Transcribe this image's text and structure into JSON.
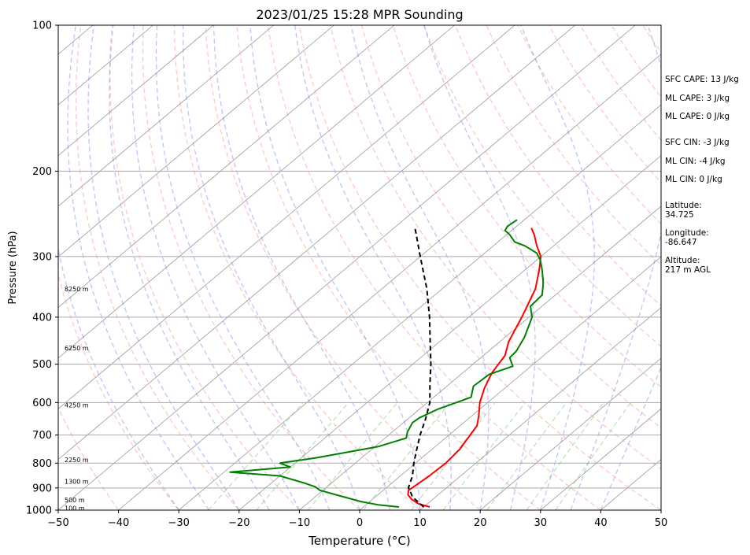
{
  "chart_data": {
    "type": "line",
    "title": "2023/01/25 15:28 MPR Sounding",
    "xlabel": "Temperature (°C)",
    "ylabel": "Pressure (hPa)",
    "xlim": [
      -50,
      50
    ],
    "ylim": [
      1000,
      100
    ],
    "yscale": "log",
    "skew": "skew-T",
    "grid": true,
    "x_ticks": [
      "−50",
      "−40",
      "−30",
      "−20",
      "−10",
      "0",
      "10",
      "20",
      "30",
      "40",
      "50"
    ],
    "y_ticks": [
      {
        "p": 100,
        "label": "100"
      },
      {
        "p": 200,
        "label": "200"
      },
      {
        "p": 300,
        "label": "300"
      },
      {
        "p": 400,
        "label": "400"
      },
      {
        "p": 500,
        "label": "500"
      },
      {
        "p": 600,
        "label": "600"
      },
      {
        "p": 700,
        "label": "700"
      },
      {
        "p": 800,
        "label": "800"
      },
      {
        "p": 900,
        "label": "900"
      },
      {
        "p": 1000,
        "label": "1000"
      }
    ],
    "height_labels": [
      {
        "p": 350,
        "label": "8250 m"
      },
      {
        "p": 463,
        "label": "6250 m"
      },
      {
        "p": 607,
        "label": "4250 m"
      },
      {
        "p": 787,
        "label": "2250 m"
      },
      {
        "p": 872,
        "label": "1300 m"
      },
      {
        "p": 953,
        "label": "500 m"
      },
      {
        "p": 990,
        "label": "100 m"
      }
    ],
    "series": [
      {
        "color": "#ff0000",
        "points": [
          [
            985,
            11.0
          ],
          [
            970,
            8.5
          ],
          [
            950,
            6.5
          ],
          [
            930,
            5.0
          ],
          [
            910,
            4.2
          ],
          [
            880,
            4.5
          ],
          [
            850,
            4.8
          ],
          [
            800,
            5.0
          ],
          [
            750,
            4.6
          ],
          [
            700,
            3.5
          ],
          [
            670,
            2.8
          ],
          [
            640,
            1.2
          ],
          [
            600,
            -1.3
          ],
          [
            560,
            -3.4
          ],
          [
            520,
            -5.2
          ],
          [
            480,
            -6.4
          ],
          [
            450,
            -8.5
          ],
          [
            400,
            -11.2
          ],
          [
            350,
            -14.5
          ],
          [
            320,
            -17.6
          ],
          [
            300,
            -20.0
          ],
          [
            285,
            -22.8
          ],
          [
            270,
            -25.5
          ],
          [
            262,
            -27.2
          ]
        ]
      },
      {
        "color": "#008000",
        "points": [
          [
            985,
            5.9
          ],
          [
            975,
            2.0
          ],
          [
            960,
            -1.5
          ],
          [
            935,
            -6.0
          ],
          [
            910,
            -10.5
          ],
          [
            895,
            -12.0
          ],
          [
            880,
            -14.4
          ],
          [
            850,
            -20.0
          ],
          [
            835,
            -29.0
          ],
          [
            815,
            -20.0
          ],
          [
            800,
            -22.5
          ],
          [
            780,
            -17.5
          ],
          [
            740,
            -9.5
          ],
          [
            710,
            -6.5
          ],
          [
            690,
            -7.5
          ],
          [
            660,
            -8.5
          ],
          [
            645,
            -8.3
          ],
          [
            620,
            -7.0
          ],
          [
            585,
            -3.8
          ],
          [
            555,
            -5.6
          ],
          [
            525,
            -5.3
          ],
          [
            505,
            -3.0
          ],
          [
            485,
            -5.2
          ],
          [
            470,
            -5.4
          ],
          [
            440,
            -6.8
          ],
          [
            400,
            -9.5
          ],
          [
            380,
            -11.9
          ],
          [
            360,
            -12.2
          ],
          [
            340,
            -14.4
          ],
          [
            320,
            -17.1
          ],
          [
            305,
            -19.4
          ],
          [
            295,
            -21.4
          ],
          [
            285,
            -24.8
          ],
          [
            280,
            -27.2
          ],
          [
            270,
            -29.6
          ],
          [
            265,
            -31.1
          ],
          [
            260,
            -31.5
          ],
          [
            252,
            -31.2
          ]
        ]
      },
      {
        "color": "#000000",
        "dashed": true,
        "points": [
          [
            985,
            10.0
          ],
          [
            940,
            6.2
          ],
          [
            920,
            5.0
          ],
          [
            900,
            3.7
          ],
          [
            850,
            2.0
          ],
          [
            800,
            -0.3
          ],
          [
            750,
            -2.5
          ],
          [
            700,
            -4.8
          ],
          [
            650,
            -7.0
          ],
          [
            600,
            -9.6
          ],
          [
            550,
            -13.2
          ],
          [
            500,
            -17.0
          ],
          [
            450,
            -21.5
          ],
          [
            400,
            -26.5
          ],
          [
            350,
            -32.5
          ],
          [
            300,
            -40.0
          ],
          [
            262,
            -46.5
          ]
        ]
      }
    ],
    "info": [
      "SFC CAPE: 13 J/kg",
      "ML CAPE: 3 J/kg",
      "ML CAPE: 0 J/kg",
      "SFC CIN: -3 J/kg",
      "ML CIN: -4 J/kg",
      "ML CIN: 0 J/kg",
      "Latitude:",
      "34.725",
      "Longitude:",
      "-86.647",
      "Altitude:",
      "217 m AGL"
    ]
  }
}
